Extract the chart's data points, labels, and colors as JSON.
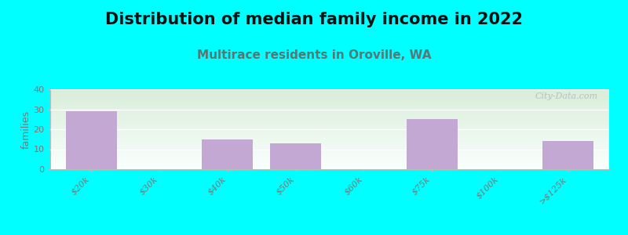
{
  "title": "Distribution of median family income in 2022",
  "subtitle": "Multirace residents in Oroville, WA",
  "categories": [
    "$20k",
    "$30k",
    "$40k",
    "$50k",
    "$60k",
    "$75k",
    "$100k",
    ">$125k"
  ],
  "values": [
    29,
    0,
    15,
    13,
    0,
    25,
    0,
    14
  ],
  "bar_color": "#C4A8D4",
  "empty_color": "#D8E8C8",
  "ylabel": "families",
  "ylim": [
    0,
    40
  ],
  "yticks": [
    0,
    10,
    20,
    30,
    40
  ],
  "background_color": "#00FFFF",
  "plot_bg_top_left": "#D8EDD8",
  "plot_bg_top_right": "#E8F0F0",
  "plot_bg_bottom": "#FAFFFE",
  "title_fontsize": 15,
  "title_fontweight": "bold",
  "subtitle_fontsize": 11,
  "subtitle_color": "#557777",
  "watermark": "City-Data.com",
  "watermark_color": "#aabbbb",
  "tick_color": "#777777",
  "ylabel_fontsize": 9,
  "tick_fontsize": 8
}
